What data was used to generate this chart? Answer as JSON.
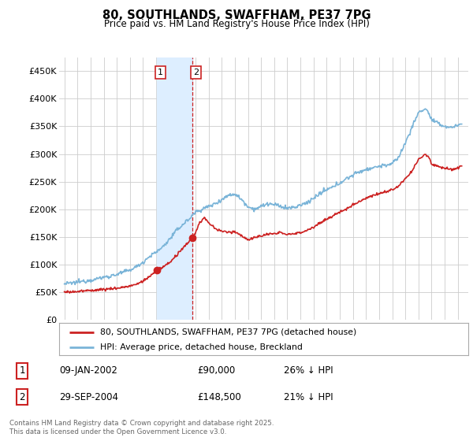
{
  "title": "80, SOUTHLANDS, SWAFFHAM, PE37 7PG",
  "subtitle": "Price paid vs. HM Land Registry's House Price Index (HPI)",
  "legend_line1": "80, SOUTHLANDS, SWAFFHAM, PE37 7PG (detached house)",
  "legend_line2": "HPI: Average price, detached house, Breckland",
  "hpi_color": "#7ab4d8",
  "price_color": "#cc2222",
  "highlight_fill": "#ddeeff",
  "highlight_border_color": "#cc2222",
  "background_color": "#ffffff",
  "grid_color": "#cccccc",
  "ylim": [
    0,
    475000
  ],
  "yticks": [
    0,
    50000,
    100000,
    150000,
    200000,
    250000,
    300000,
    350000,
    400000,
    450000
  ],
  "ytick_labels": [
    "£0",
    "£50K",
    "£100K",
    "£150K",
    "£200K",
    "£250K",
    "£300K",
    "£350K",
    "£400K",
    "£450K"
  ],
  "xlim_start": 1994.6,
  "xlim_end": 2025.8,
  "footer": "Contains HM Land Registry data © Crown copyright and database right 2025.\nThis data is licensed under the Open Government Licence v3.0.",
  "transaction1_x": 2002.03,
  "transaction1_y": 90000,
  "transaction2_x": 2004.75,
  "transaction2_y": 148500,
  "ann1_date": "09-JAN-2002",
  "ann1_price": "£90,000",
  "ann1_hpi": "26% ↓ HPI",
  "ann2_date": "29-SEP-2004",
  "ann2_price": "£148,500",
  "ann2_hpi": "21% ↓ HPI"
}
